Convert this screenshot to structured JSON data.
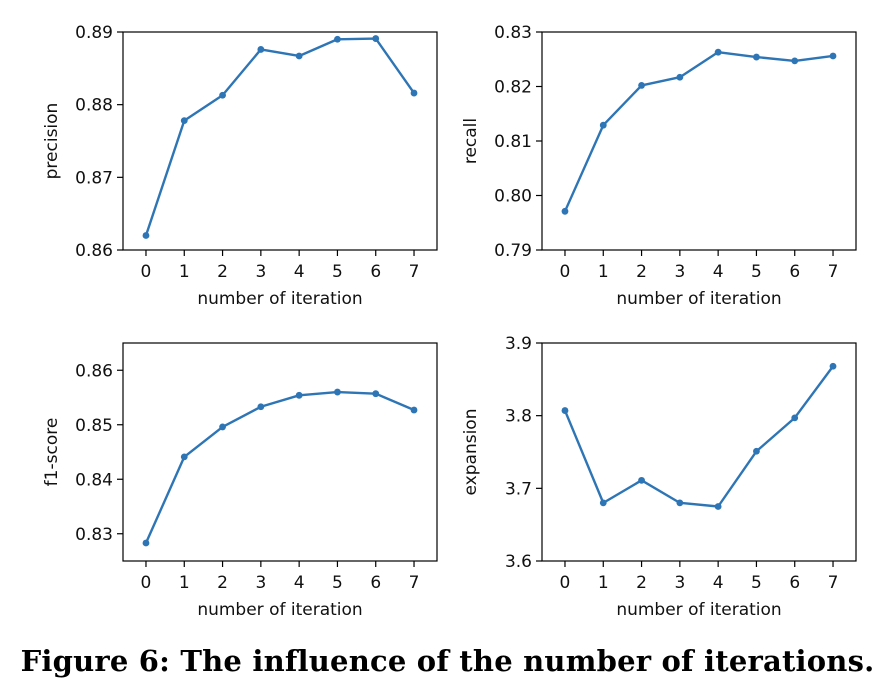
{
  "caption": "Figure 6: The influence of the number of iterations.",
  "colors": {
    "line": "#2e75b6"
  },
  "chart_data": [
    {
      "type": "line",
      "title": "",
      "xlabel": "number of iteration",
      "ylabel": "precision",
      "x": [
        0,
        1,
        2,
        3,
        4,
        5,
        6,
        7
      ],
      "series": [
        {
          "values": [
            0.862,
            0.8778,
            0.8813,
            0.8876,
            0.8867,
            0.889,
            0.8891,
            0.8816
          ]
        }
      ],
      "xlim": [
        -0.6,
        7.6
      ],
      "ylim": [
        0.86,
        0.89
      ],
      "yticks": [
        "0.86",
        "0.87",
        "0.88",
        "0.89"
      ],
      "xticks": [
        "0",
        "1",
        "2",
        "3",
        "4",
        "5",
        "6",
        "7"
      ],
      "grid": false
    },
    {
      "type": "line",
      "title": "",
      "xlabel": "number of iteration",
      "ylabel": "recall",
      "x": [
        0,
        1,
        2,
        3,
        4,
        5,
        6,
        7
      ],
      "series": [
        {
          "values": [
            0.7971,
            0.8129,
            0.8202,
            0.8217,
            0.8263,
            0.8254,
            0.8247,
            0.8256
          ]
        }
      ],
      "xlim": [
        -0.6,
        7.6
      ],
      "ylim": [
        0.79,
        0.83
      ],
      "yticks": [
        "0.79",
        "0.80",
        "0.81",
        "0.82",
        "0.83"
      ],
      "xticks": [
        "0",
        "1",
        "2",
        "3",
        "4",
        "5",
        "6",
        "7"
      ],
      "grid": false
    },
    {
      "type": "line",
      "title": "",
      "xlabel": "number of iteration",
      "ylabel": "f1-score",
      "x": [
        0,
        1,
        2,
        3,
        4,
        5,
        6,
        7
      ],
      "series": [
        {
          "values": [
            0.8283,
            0.8441,
            0.8496,
            0.8533,
            0.8554,
            0.856,
            0.8557,
            0.8527
          ]
        }
      ],
      "xlim": [
        -0.6,
        7.6
      ],
      "ylim": [
        0.825,
        0.865
      ],
      "yticks": [
        "0.83",
        "0.84",
        "0.85",
        "0.86"
      ],
      "ytick_values": [
        0.83,
        0.84,
        0.85,
        0.86
      ],
      "xticks": [
        "0",
        "1",
        "2",
        "3",
        "4",
        "5",
        "6",
        "7"
      ],
      "grid": false
    },
    {
      "type": "line",
      "title": "",
      "xlabel": "number of iteration",
      "ylabel": "expansion",
      "x": [
        0,
        1,
        2,
        3,
        4,
        5,
        6,
        7
      ],
      "series": [
        {
          "values": [
            3.807,
            3.68,
            3.711,
            3.68,
            3.675,
            3.751,
            3.797,
            3.868
          ]
        }
      ],
      "xlim": [
        -0.6,
        7.6
      ],
      "ylim": [
        3.6,
        3.9
      ],
      "yticks": [
        "3.6",
        "3.7",
        "3.8",
        "3.9"
      ],
      "xticks": [
        "0",
        "1",
        "2",
        "3",
        "4",
        "5",
        "6",
        "7"
      ],
      "grid": false
    }
  ]
}
